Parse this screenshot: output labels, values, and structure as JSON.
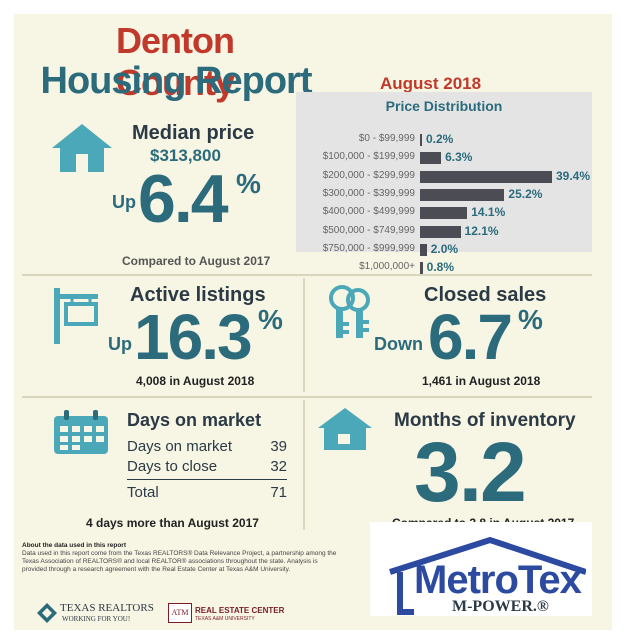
{
  "header": {
    "title_line1": "Denton County",
    "title_line2": "Housing Report",
    "month": "August 2018"
  },
  "median_price": {
    "label": "Median price",
    "value": "$313,800",
    "direction": "Up",
    "change": "6.4",
    "pct_sign": "%",
    "comparison": "Compared to August 2017"
  },
  "price_distribution": {
    "title": "Price Distribution",
    "rows": [
      {
        "range": "$0 - $99,999",
        "value": "0.2%",
        "pct": 0.2
      },
      {
        "range": "$100,000 - $199,999",
        "value": "6.3%",
        "pct": 6.3
      },
      {
        "range": "$200,000 - $299,999",
        "value": "39.4%",
        "pct": 39.4
      },
      {
        "range": "$300,000 - $399,999",
        "value": "25.2%",
        "pct": 25.2
      },
      {
        "range": "$400,000 - $499,999",
        "value": "14.1%",
        "pct": 14.1
      },
      {
        "range": "$500,000 - $749,999",
        "value": "12.1%",
        "pct": 12.1
      },
      {
        "range": "$750,000 - $999,999",
        "value": "2.0%",
        "pct": 2.0
      },
      {
        "range": "$1,000,000+",
        "value": "0.8%",
        "pct": 0.8
      }
    ]
  },
  "active_listings": {
    "label": "Active listings",
    "direction": "Up",
    "change": "16.3",
    "pct_sign": "%",
    "note": "4,008 in August 2018"
  },
  "closed_sales": {
    "label": "Closed sales",
    "direction": "Down",
    "change": "6.7",
    "pct_sign": "%",
    "note": "1,461 in August 2018"
  },
  "days_on_market": {
    "label": "Days on market",
    "rows": [
      {
        "name": "Days on market",
        "value": "39"
      },
      {
        "name": "Days to close",
        "value": "32"
      }
    ],
    "total_label": "Total",
    "total_value": "71",
    "note": "4 days more than August 2017"
  },
  "months_inventory": {
    "label": "Months of inventory",
    "value": "3.2",
    "note": "Compared to 2.8 in August 2017"
  },
  "about": {
    "heading": "About the data used in this report",
    "text": "Data used in this report come from the Texas REALTORS® Data Relevance Project, a partnership among the Texas Association of REALTORS® and local REALTOR® associations throughout the state. Analysis is provided through a research agreement with the Real Estate Center at Texas A&M University."
  },
  "logos": {
    "texas_realtors": "TEXAS REALTORS",
    "texas_realtors_tag": "WORKING FOR YOU!",
    "rec_mark": "ATM",
    "rec": "REAL ESTATE CENTER",
    "rec_sub": "TEXAS A&M UNIVERSITY",
    "metrotex": "MetroTex",
    "mpower": "M-POWER.®"
  },
  "colors": {
    "teal": "#2b6b7c",
    "red": "#c0392b",
    "icon_teal": "#4aa8b8",
    "bar": "#4c4c55"
  },
  "icons": [
    "house-icon",
    "for-sale-sign-icon",
    "keys-icon",
    "calendar-icon",
    "house-small-icon"
  ]
}
